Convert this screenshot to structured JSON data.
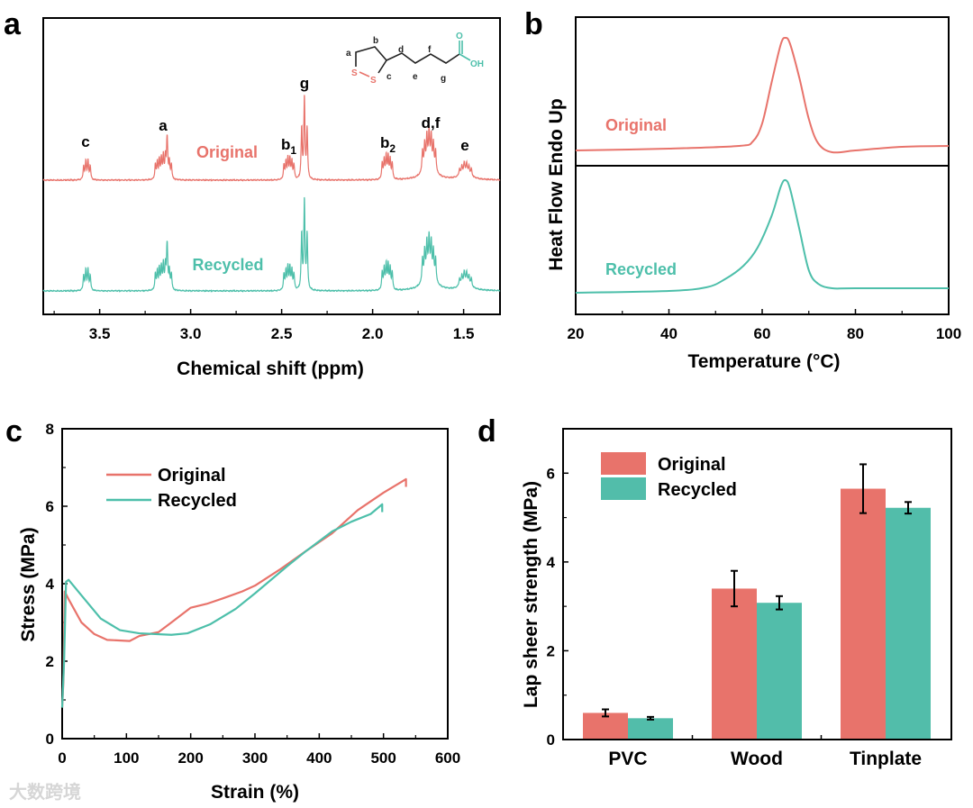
{
  "colors": {
    "original": "#e8736b",
    "recycled": "#4dbfaa",
    "axis": "#000000"
  },
  "watermark": "大数跨境",
  "chart_data": [
    {
      "panel": "a",
      "type": "line",
      "title": "",
      "xlabel": "Chemical shift (ppm)",
      "ylabel": "",
      "xlim": [
        3.81,
        1.3
      ],
      "xticks": [
        "3.5",
        "3.0",
        "2.5",
        "2.0",
        "1.5"
      ],
      "xtick_values": [
        3.5,
        3.0,
        2.5,
        2.0,
        1.5
      ],
      "series": [
        {
          "name": "Original",
          "intensity_scale": 1.0
        },
        {
          "name": "Recycled",
          "intensity_scale": 1.1
        }
      ],
      "peaks": [
        {
          "label": "c",
          "sub": "",
          "ppm": 3.57,
          "height": 0.26,
          "lines": 4,
          "spacing": 0.012
        },
        {
          "label": "a",
          "sub": "",
          "ppm": 3.15,
          "height": 0.28,
          "lines": 9,
          "spacing": 0.011
        },
        {
          "label": "",
          "sub": "",
          "ppm": 3.13,
          "height": 0.32,
          "lines": 1,
          "spacing": 0
        },
        {
          "label": "b",
          "sub": "1",
          "ppm": 2.46,
          "height": 0.27,
          "lines": 6,
          "spacing": 0.011
        },
        {
          "label": "g",
          "sub": "",
          "ppm": 2.375,
          "height": 1.0,
          "lines": 1,
          "spacing": 0
        },
        {
          "label": "",
          "sub": "",
          "ppm": 2.39,
          "height": 0.62,
          "lines": 1,
          "spacing": 0
        },
        {
          "label": "",
          "sub": "",
          "ppm": 2.36,
          "height": 0.62,
          "lines": 1,
          "spacing": 0
        },
        {
          "label": "b",
          "sub": "2",
          "ppm": 1.92,
          "height": 0.3,
          "lines": 6,
          "spacing": 0.011
        },
        {
          "label": "d,f",
          "sub": "",
          "ppm": 1.69,
          "height": 0.4,
          "lines": 7,
          "spacing": 0.012,
          "broad": 0.2
        },
        {
          "label": "e",
          "sub": "",
          "ppm": 1.49,
          "height": 0.13,
          "lines": 6,
          "spacing": 0.013,
          "broad": 0.09
        }
      ],
      "peak_labels": [
        {
          "text": "c",
          "sub": ""
        },
        {
          "text": "a",
          "sub": ""
        },
        {
          "text": "b",
          "sub": "1"
        },
        {
          "text": "g",
          "sub": ""
        },
        {
          "text": "b",
          "sub": "2"
        },
        {
          "text": "d,f",
          "sub": ""
        },
        {
          "text": "e",
          "sub": ""
        }
      ],
      "structure_labels": {
        "a": "a",
        "b": "b",
        "c": "c",
        "d": "d",
        "e": "e",
        "f": "f",
        "g": "g",
        "s1": "S",
        "s2": "S",
        "o": "O",
        "oh": "OH"
      }
    },
    {
      "panel": "b",
      "type": "line",
      "xlabel": "Temperature (°C)",
      "ylabel": "Heat Flow Endo Up",
      "xlim": [
        20,
        100
      ],
      "xticks": [
        "20",
        "40",
        "60",
        "80",
        "100"
      ],
      "xtick_values": [
        20,
        40,
        60,
        80,
        100
      ],
      "series": [
        {
          "name": "Original",
          "points": [
            [
              20,
              0
            ],
            [
              40,
              0.02
            ],
            [
              55,
              0.05
            ],
            [
              58,
              0.1
            ],
            [
              60,
              0.3
            ],
            [
              62,
              0.75
            ],
            [
              64,
              1.18
            ],
            [
              65,
              1.25
            ],
            [
              66,
              1.18
            ],
            [
              68,
              0.8
            ],
            [
              70,
              0.35
            ],
            [
              72,
              0.08
            ],
            [
              75,
              -0.02
            ],
            [
              80,
              0.0
            ],
            [
              90,
              0.04
            ],
            [
              100,
              0.05
            ]
          ]
        },
        {
          "name": "Recycled",
          "points": [
            [
              20,
              0
            ],
            [
              40,
              0.02
            ],
            [
              48,
              0.06
            ],
            [
              52,
              0.15
            ],
            [
              56,
              0.3
            ],
            [
              59,
              0.5
            ],
            [
              62,
              0.85
            ],
            [
              64,
              1.18
            ],
            [
              65,
              1.25
            ],
            [
              66,
              1.15
            ],
            [
              68,
              0.7
            ],
            [
              70,
              0.25
            ],
            [
              72,
              0.1
            ],
            [
              75,
              0.05
            ],
            [
              80,
              0.05
            ],
            [
              100,
              0.05
            ]
          ]
        }
      ]
    },
    {
      "panel": "c",
      "type": "line",
      "xlabel": "Strain (%)",
      "ylabel": "Stress (MPa)",
      "xlim": [
        0,
        600
      ],
      "ylim": [
        0,
        8
      ],
      "xticks": [
        "0",
        "100",
        "200",
        "300",
        "400",
        "500",
        "600"
      ],
      "xtick_values": [
        0,
        100,
        200,
        300,
        400,
        500,
        600
      ],
      "yticks": [
        "0",
        "2",
        "4",
        "6",
        "8"
      ],
      "ytick_values": [
        0,
        2,
        4,
        6,
        8
      ],
      "legend": "top-left",
      "series": [
        {
          "name": "Original",
          "points": [
            [
              0,
              0.8
            ],
            [
              2,
              1.5
            ],
            [
              4,
              3.8
            ],
            [
              10,
              3.6
            ],
            [
              30,
              3.0
            ],
            [
              50,
              2.7
            ],
            [
              70,
              2.55
            ],
            [
              105,
              2.52
            ],
            [
              120,
              2.65
            ],
            [
              150,
              2.75
            ],
            [
              170,
              3.0
            ],
            [
              200,
              3.38
            ],
            [
              225,
              3.48
            ],
            [
              250,
              3.62
            ],
            [
              280,
              3.8
            ],
            [
              300,
              3.95
            ],
            [
              340,
              4.38
            ],
            [
              380,
              4.85
            ],
            [
              420,
              5.3
            ],
            [
              460,
              5.9
            ],
            [
              500,
              6.35
            ],
            [
              535,
              6.7
            ],
            [
              535,
              6.5
            ]
          ]
        },
        {
          "name": "Recycled",
          "points": [
            [
              0,
              0.8
            ],
            [
              3,
              2.0
            ],
            [
              6,
              4.05
            ],
            [
              10,
              4.1
            ],
            [
              30,
              3.7
            ],
            [
              60,
              3.1
            ],
            [
              90,
              2.8
            ],
            [
              120,
              2.72
            ],
            [
              170,
              2.68
            ],
            [
              195,
              2.72
            ],
            [
              230,
              2.95
            ],
            [
              270,
              3.35
            ],
            [
              300,
              3.75
            ],
            [
              350,
              4.45
            ],
            [
              380,
              4.85
            ],
            [
              420,
              5.35
            ],
            [
              450,
              5.6
            ],
            [
              480,
              5.8
            ],
            [
              498,
              6.05
            ],
            [
              498,
              5.85
            ]
          ]
        }
      ]
    },
    {
      "panel": "d",
      "type": "bar",
      "xlabel": "",
      "ylabel": "Lap sheer strength (MPa)",
      "ylim": [
        0,
        7
      ],
      "yticks": [
        "0",
        "2",
        "4",
        "6"
      ],
      "ytick_values": [
        0,
        2,
        4,
        6
      ],
      "categories": [
        "PVC",
        "Wood",
        "Tinplate"
      ],
      "legend": "top-left",
      "series": [
        {
          "name": "Original",
          "values": [
            0.6,
            3.4,
            5.65
          ],
          "errors": [
            0.08,
            0.4,
            0.55
          ]
        },
        {
          "name": "Recycled",
          "values": [
            0.48,
            3.08,
            5.22
          ],
          "errors": [
            0.03,
            0.15,
            0.13
          ]
        }
      ]
    }
  ]
}
